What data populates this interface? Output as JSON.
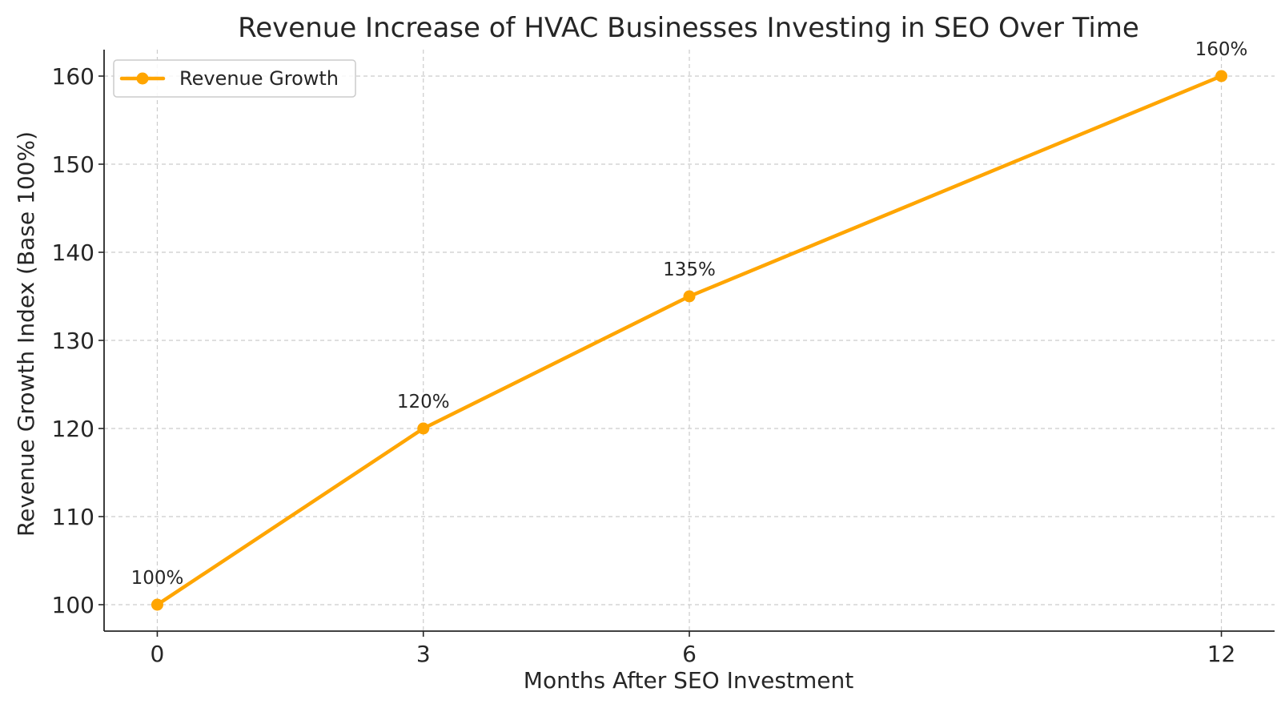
{
  "chart_data": {
    "type": "line",
    "title": "Revenue Increase of HVAC Businesses Investing in SEO Over Time",
    "xlabel": "Months After SEO Investment",
    "ylabel": "Revenue Growth Index (Base 100%)",
    "x": [
      0,
      3,
      6,
      12
    ],
    "x_ticks": [
      0,
      3,
      6,
      12
    ],
    "y_ticks": [
      100,
      110,
      120,
      130,
      140,
      150,
      160
    ],
    "xlim": [
      -0.6,
      12.6
    ],
    "ylim": [
      97,
      163
    ],
    "grid": true,
    "legend_position": "top-left",
    "series": [
      {
        "name": "Revenue Growth",
        "values": [
          100,
          120,
          135,
          160
        ],
        "data_labels": [
          "100%",
          "120%",
          "135%",
          "160%"
        ],
        "color": "#FFA500",
        "marker": "circle"
      }
    ]
  }
}
